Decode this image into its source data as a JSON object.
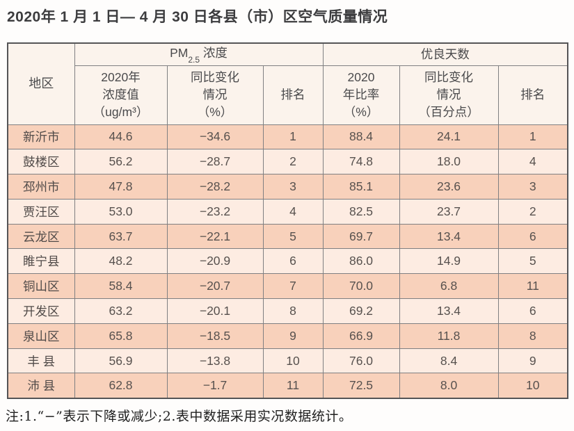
{
  "page": {
    "title": "2020年 1 月 1 日— 4 月 30 日各县（市）区空气质量情况",
    "note": "注:1.“−”表示下降或减少;2.表中数据采用实况数据统计。"
  },
  "colors": {
    "row_odd_bg": "#f8d1bb",
    "row_even_bg": "#fdece2",
    "header_bg": "#fbf3ec",
    "inner_border": "#7f7f81",
    "outer_border": "#545456",
    "text": "#57514e"
  },
  "table": {
    "corner_header": "地区",
    "pm_group": {
      "prefix": "PM",
      "sub": "2.5",
      "suffix": " 浓度"
    },
    "good_group": "优良天数",
    "sub_headers": [
      {
        "text": "2020年\n浓度值\n（ug/m³）"
      },
      {
        "text": "同比变化\n情况\n（%）"
      },
      {
        "text": "排名"
      },
      {
        "text": "2020\n年比率\n（%）"
      },
      {
        "text": "同比变化\n情况\n（百分点）"
      },
      {
        "text": "排名"
      }
    ],
    "rows": [
      {
        "region": "新沂市",
        "pm_value": "44.6",
        "pm_change": "−34.6",
        "pm_rank": "1",
        "good_ratio": "88.4",
        "good_change": "24.1",
        "good_rank": "1"
      },
      {
        "region": "鼓楼区",
        "pm_value": "56.2",
        "pm_change": "−28.7",
        "pm_rank": "2",
        "good_ratio": "74.8",
        "good_change": "18.0",
        "good_rank": "4"
      },
      {
        "region": "邳州市",
        "pm_value": "47.8",
        "pm_change": "−28.2",
        "pm_rank": "3",
        "good_ratio": "85.1",
        "good_change": "23.6",
        "good_rank": "3"
      },
      {
        "region": "贾汪区",
        "pm_value": "53.0",
        "pm_change": "−23.2",
        "pm_rank": "4",
        "good_ratio": "82.5",
        "good_change": "23.7",
        "good_rank": "2"
      },
      {
        "region": "云龙区",
        "pm_value": "63.7",
        "pm_change": "−22.1",
        "pm_rank": "5",
        "good_ratio": "69.7",
        "good_change": "13.4",
        "good_rank": "6"
      },
      {
        "region": "睢宁县",
        "pm_value": "48.2",
        "pm_change": "−20.9",
        "pm_rank": "6",
        "good_ratio": "86.0",
        "good_change": "14.9",
        "good_rank": "5"
      },
      {
        "region": "铜山区",
        "pm_value": "58.4",
        "pm_change": "−20.7",
        "pm_rank": "7",
        "good_ratio": "70.0",
        "good_change": "6.8",
        "good_rank": "11"
      },
      {
        "region": "开发区",
        "pm_value": "63.2",
        "pm_change": "−20.1",
        "pm_rank": "8",
        "good_ratio": "69.2",
        "good_change": "13.4",
        "good_rank": "6"
      },
      {
        "region": "泉山区",
        "pm_value": "65.8",
        "pm_change": "−18.5",
        "pm_rank": "9",
        "good_ratio": "66.9",
        "good_change": "11.8",
        "good_rank": "8"
      },
      {
        "region": "丰 县",
        "pm_value": "56.9",
        "pm_change": "−13.8",
        "pm_rank": "10",
        "good_ratio": "76.0",
        "good_change": "8.4",
        "good_rank": "9"
      },
      {
        "region": "沛 县",
        "pm_value": "62.8",
        "pm_change": "−1.7",
        "pm_rank": "11",
        "good_ratio": "72.5",
        "good_change": "8.0",
        "good_rank": "10"
      }
    ]
  }
}
